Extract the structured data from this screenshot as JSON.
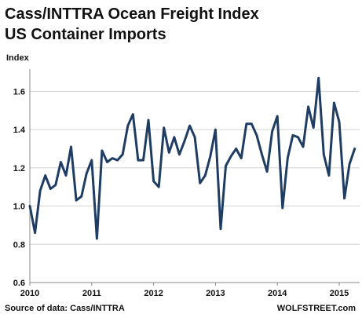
{
  "colors": {
    "line": "#1f3d63",
    "grid": "#d4d4d4",
    "axis": "#888888"
  },
  "chart_data": {
    "type": "line",
    "title": "Cass/INTTRA Ocean Freight Index",
    "subtitle": "US Container Imports",
    "ylabel": "Index",
    "xlabel": "",
    "ylim": [
      0.6,
      1.7
    ],
    "yticks": [
      0.6,
      0.8,
      1.0,
      1.2,
      1.4,
      1.6
    ],
    "ytick_labels": [
      "0.6",
      "0.8",
      "1.0",
      "1.2",
      "1.4",
      "1.6"
    ],
    "xlim": [
      2010,
      2015.33
    ],
    "xticks": [
      2010,
      2011,
      2012,
      2013,
      2014,
      2015
    ],
    "xtick_labels": [
      "2010",
      "2011",
      "2012",
      "2013",
      "2014",
      "2015"
    ],
    "grid": "horizontal",
    "legend": "none",
    "series": [
      {
        "frequency": "monthly",
        "start": "2010-01",
        "values": [
          1.0,
          0.86,
          1.08,
          1.16,
          1.09,
          1.11,
          1.23,
          1.16,
          1.31,
          1.03,
          1.05,
          1.17,
          1.24,
          0.83,
          1.29,
          1.23,
          1.25,
          1.24,
          1.27,
          1.42,
          1.48,
          1.24,
          1.24,
          1.45,
          1.13,
          1.1,
          1.41,
          1.28,
          1.36,
          1.27,
          1.34,
          1.42,
          1.36,
          1.12,
          1.16,
          1.26,
          1.4,
          0.88,
          1.21,
          1.26,
          1.3,
          1.25,
          1.43,
          1.43,
          1.37,
          1.27,
          1.18,
          1.39,
          1.47,
          0.99,
          1.25,
          1.37,
          1.36,
          1.31,
          1.52,
          1.41,
          1.67,
          1.27,
          1.16,
          1.54,
          1.44,
          1.04,
          1.22,
          1.3
        ]
      }
    ]
  },
  "footer": {
    "source": "Source of data: Cass/INTTRA",
    "credit": "WOLFSTREET.com"
  }
}
